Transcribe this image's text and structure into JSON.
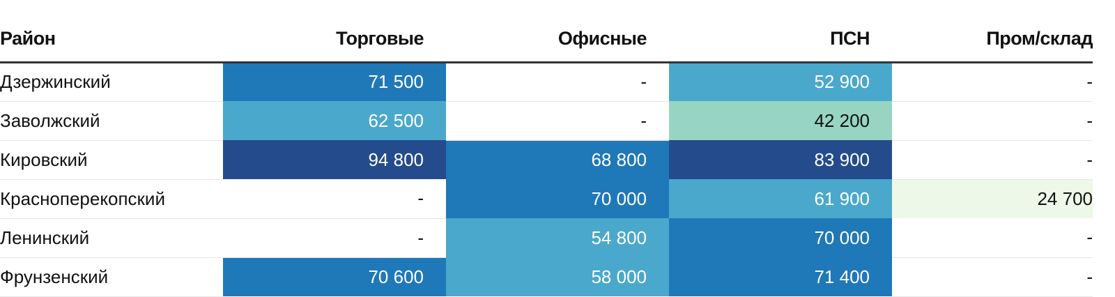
{
  "table": {
    "headers": [
      "Район",
      "Торговые",
      "Офисные",
      "ПСН",
      "Пром/склад"
    ],
    "rows": [
      {
        "name": "Дзержинский",
        "cells": [
          {
            "text": "71 500",
            "bg": "#1f78b8",
            "light": true
          },
          {
            "text": "-",
            "bg": null,
            "light": false
          },
          {
            "text": "52 900",
            "bg": "#4aa8cc",
            "light": true
          },
          {
            "text": "-",
            "bg": null,
            "light": false
          }
        ]
      },
      {
        "name": "Заволжский",
        "cells": [
          {
            "text": "62 500",
            "bg": "#4aa8cc",
            "light": true
          },
          {
            "text": "-",
            "bg": null,
            "light": false
          },
          {
            "text": "42 200",
            "bg": "#97d5c2",
            "light": false
          },
          {
            "text": "-",
            "bg": null,
            "light": false
          }
        ]
      },
      {
        "name": "Кировский",
        "cells": [
          {
            "text": "94 800",
            "bg": "#244b8c",
            "light": true
          },
          {
            "text": "68 800",
            "bg": "#1f78b8",
            "light": true
          },
          {
            "text": "83 900",
            "bg": "#244b8c",
            "light": true
          },
          {
            "text": "-",
            "bg": null,
            "light": false
          }
        ]
      },
      {
        "name": "Красноперекопский",
        "cells": [
          {
            "text": "-",
            "bg": null,
            "light": false
          },
          {
            "text": "70 000",
            "bg": "#1f78b8",
            "light": true
          },
          {
            "text": "61 900",
            "bg": "#4aa8cc",
            "light": true
          },
          {
            "text": "24 700",
            "bg": "#eef8e8",
            "light": false
          }
        ]
      },
      {
        "name": "Ленинский",
        "cells": [
          {
            "text": "-",
            "bg": null,
            "light": false
          },
          {
            "text": "54 800",
            "bg": "#4aa8cc",
            "light": true
          },
          {
            "text": "70 000",
            "bg": "#1f78b8",
            "light": true
          },
          {
            "text": "-",
            "bg": null,
            "light": false
          }
        ]
      },
      {
        "name": "Фрунзенский",
        "cells": [
          {
            "text": "70 600",
            "bg": "#1f78b8",
            "light": true
          },
          {
            "text": "58 000",
            "bg": "#4aa8cc",
            "light": true
          },
          {
            "text": "71 400",
            "bg": "#1f78b8",
            "light": true
          },
          {
            "text": "-",
            "bg": null,
            "light": false
          }
        ]
      }
    ]
  }
}
